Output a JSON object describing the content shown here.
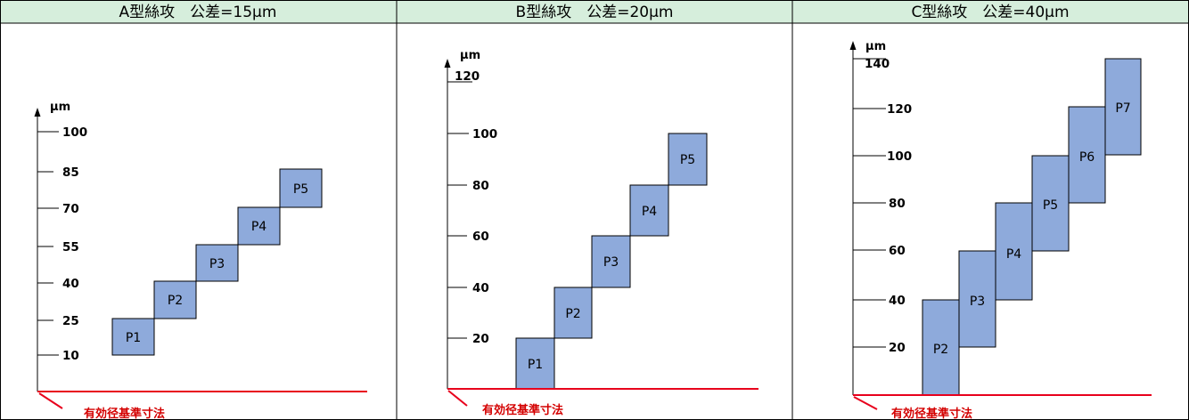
{
  "panels": [
    {
      "title": "A型絲攻　公差=15μm",
      "unit": "μm",
      "ticks": [
        "100",
        "85",
        "70",
        "55",
        "40",
        "25",
        "10"
      ],
      "boxes": [
        "P1",
        "P2",
        "P3",
        "P4",
        "P5"
      ],
      "reference_label": "有効径基準寸法"
    },
    {
      "title": "B型絲攻　公差=20μm",
      "unit": "μm",
      "ticks": [
        "120",
        "100",
        "80",
        "60",
        "40",
        "20"
      ],
      "boxes": [
        "P1",
        "P2",
        "P3",
        "P4",
        "P5"
      ],
      "reference_label": "有効径基準寸法"
    },
    {
      "title": "C型絲攻　公差=40μm",
      "unit": "μm",
      "ticks": [
        "140",
        "120",
        "100",
        "80",
        "60",
        "40",
        "20"
      ],
      "boxes": [
        "P2",
        "P3",
        "P4",
        "P5",
        "P6",
        "P7"
      ],
      "reference_label": "有効径基準寸法"
    }
  ],
  "colors": {
    "header_bg": "#d6eedc",
    "box_fill": "#8eaadb",
    "reference_line": "#e8001c"
  }
}
